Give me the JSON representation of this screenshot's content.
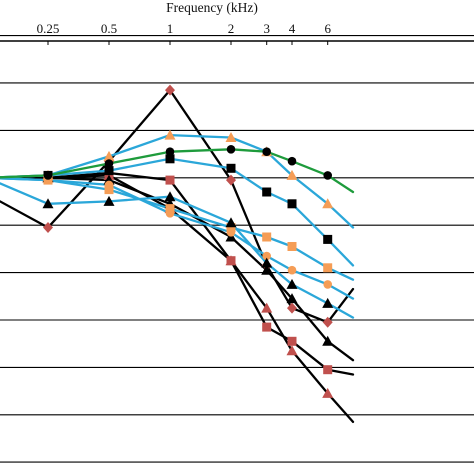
{
  "chart_data": {
    "type": "line",
    "title": "",
    "xlabel": "Frequency (kHz)",
    "ylabel": "",
    "x_axis_position": "top",
    "grid": "horizontal",
    "legend": "none",
    "x_ticks": [
      "0.25",
      "0.5",
      "1",
      "2",
      "3",
      "4",
      "6"
    ],
    "x_tick_positions": [
      0.25,
      0.5,
      1,
      2,
      3,
      4,
      6
    ],
    "x_range": [
      0.125,
      8
    ],
    "ylim": [
      0,
      9.7
    ],
    "y_gridlines": [
      9.25,
      8.25,
      7.25,
      6.25,
      5.25,
      4.25,
      3.25,
      2.25,
      1.25,
      0.25
    ],
    "colors": {
      "black": "#000000",
      "blue": "#2ba7d9",
      "green": "#1e9b3c",
      "red": "#c0504d",
      "orange": "#f59d56"
    },
    "series": [
      {
        "color": "black",
        "marker": "diamond",
        "marker_color": "red",
        "x": [
          0.125,
          0.25,
          0.5,
          1,
          2,
          3,
          4,
          6,
          8
        ],
        "y": [
          5.9,
          5.2,
          6.6,
          8.1,
          6.2,
          4.4,
          3.5,
          3.2,
          3.9
        ]
      },
      {
        "color": "black",
        "marker": "square",
        "marker_color": "red",
        "x": [
          0.125,
          0.25,
          0.5,
          1,
          2,
          3,
          4,
          6,
          8
        ],
        "y": [
          6.25,
          6.25,
          6.35,
          6.2,
          4.5,
          3.1,
          2.8,
          2.2,
          2.1
        ]
      },
      {
        "color": "black",
        "marker": "triangle",
        "marker_color": "red",
        "x": [
          0.125,
          0.25,
          0.5,
          1,
          2,
          3,
          4,
          6,
          8
        ],
        "y": [
          6.25,
          6.25,
          6.3,
          5.6,
          4.5,
          3.5,
          2.6,
          1.7,
          1.1
        ]
      },
      {
        "color": "black",
        "marker": "triangle",
        "marker_color": "black",
        "x": [
          0.125,
          0.25,
          0.5,
          1,
          2,
          3,
          4,
          6,
          8
        ],
        "y": [
          6.25,
          6.25,
          6.2,
          5.7,
          5.0,
          4.3,
          3.7,
          2.8,
          2.4
        ]
      },
      {
        "color": "blue",
        "marker": "triangle",
        "marker_color": "orange",
        "x": [
          0.125,
          0.25,
          0.5,
          1,
          2,
          3,
          4,
          6,
          8
        ],
        "y": [
          6.25,
          6.3,
          6.7,
          7.15,
          7.1,
          6.8,
          6.3,
          5.7,
          5.2
        ]
      },
      {
        "color": "blue",
        "marker": "square",
        "marker_color": "black",
        "x": [
          0.125,
          0.25,
          0.5,
          1,
          2,
          3,
          4,
          6,
          8
        ],
        "y": [
          6.25,
          6.3,
          6.4,
          6.65,
          6.45,
          5.95,
          5.7,
          4.95,
          4.4
        ]
      },
      {
        "color": "blue",
        "marker": "square",
        "marker_color": "orange",
        "x": [
          0.125,
          0.25,
          0.5,
          1,
          2,
          3,
          4,
          6,
          8
        ],
        "y": [
          6.25,
          6.2,
          6.0,
          5.6,
          5.2,
          5.0,
          4.8,
          4.35,
          4.1
        ]
      },
      {
        "color": "blue",
        "marker": "circle",
        "marker_color": "orange",
        "x": [
          0.125,
          0.25,
          0.5,
          1,
          2,
          3,
          4,
          6,
          8
        ],
        "y": [
          6.25,
          6.2,
          6.1,
          5.5,
          5.1,
          4.6,
          4.3,
          4.0,
          3.7
        ]
      },
      {
        "color": "blue",
        "marker": "triangle",
        "marker_color": "black",
        "x": [
          0.125,
          0.25,
          0.5,
          1,
          2,
          3,
          4,
          6,
          8
        ],
        "y": [
          6.25,
          5.7,
          5.75,
          5.85,
          5.3,
          4.45,
          4.0,
          3.6,
          3.3
        ]
      },
      {
        "color": "green",
        "marker": "circle",
        "marker_color": "black",
        "x": [
          0.125,
          0.25,
          0.5,
          1,
          2,
          3,
          4,
          6,
          8
        ],
        "y": [
          6.25,
          6.3,
          6.55,
          6.8,
          6.85,
          6.8,
          6.6,
          6.3,
          5.95
        ]
      }
    ]
  }
}
